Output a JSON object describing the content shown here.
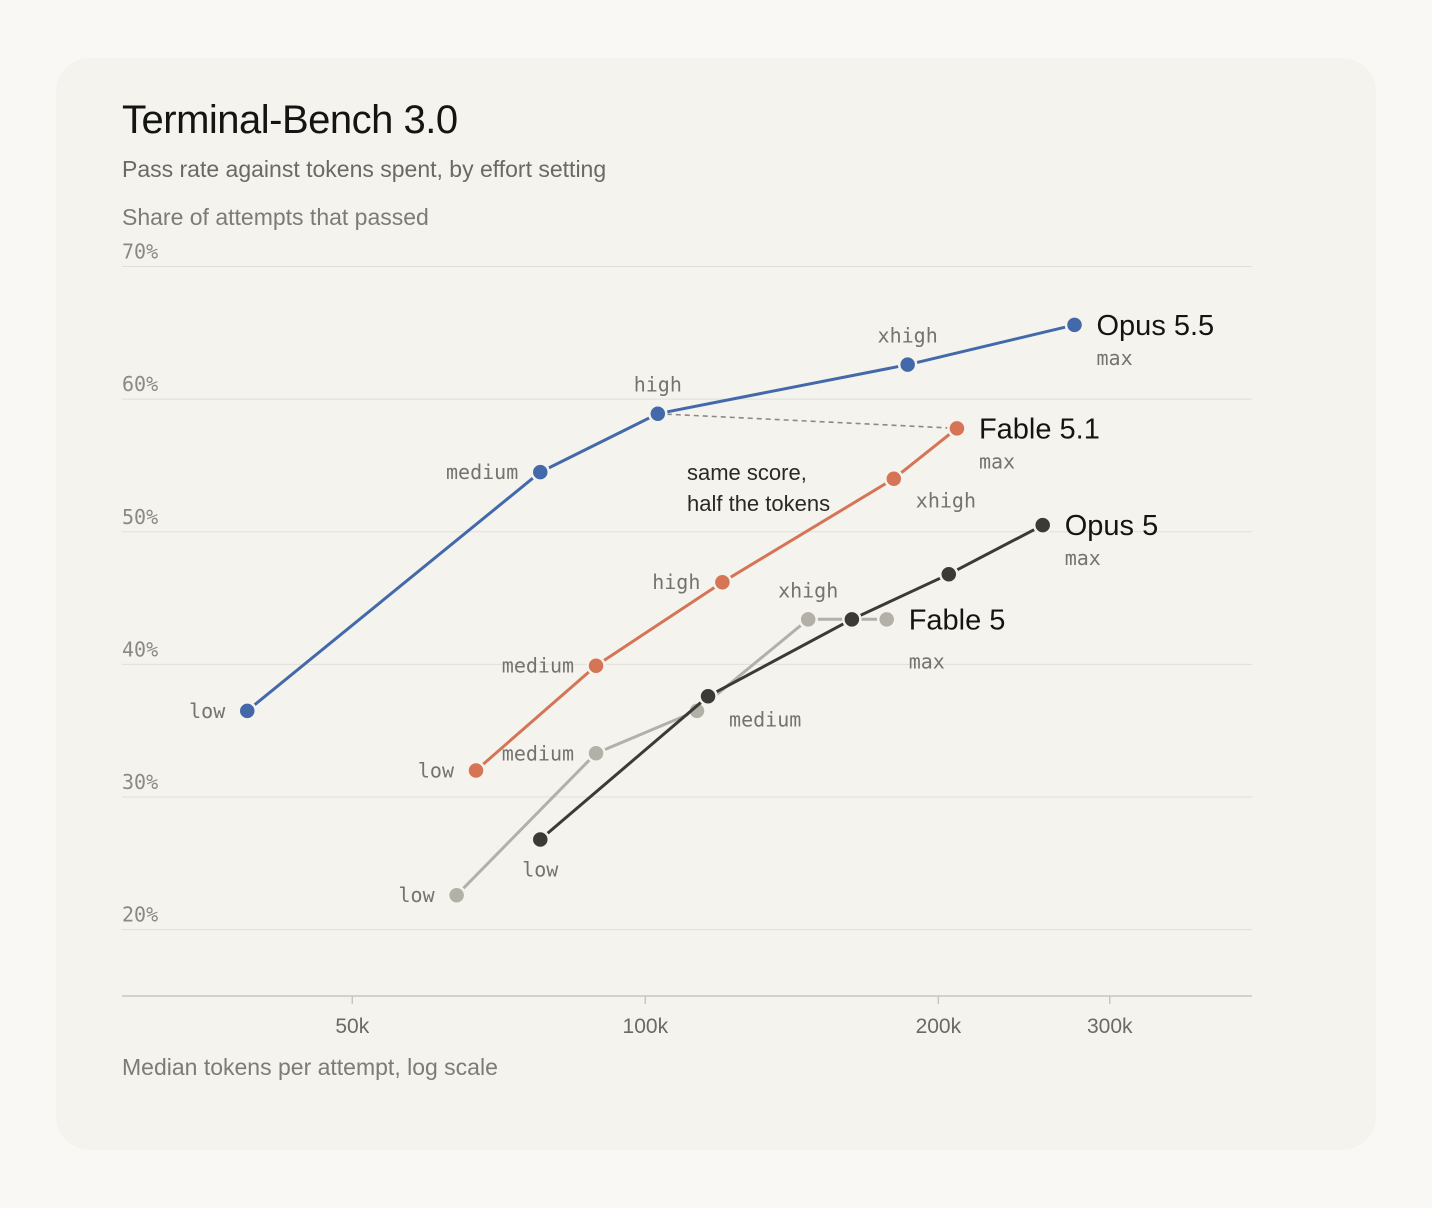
{
  "title": "Terminal-Bench 3.0",
  "subtitle": "Pass rate against tokens spent, by effort setting",
  "y_axis_label": "Share of attempts that passed",
  "x_axis_label": "Median tokens per attempt, log scale",
  "chart_data": {
    "type": "line",
    "title": "Terminal-Bench 3.0",
    "subtitle": "Pass rate against tokens spent, by effort setting",
    "xlabel": "Median tokens per attempt, log scale",
    "ylabel": "Share of attempts that passed",
    "x_scale": "log",
    "xlim": [
      29000,
      420000
    ],
    "ylim": [
      15,
      72
    ],
    "x_ticks": [
      {
        "value": 50000,
        "label": "50k"
      },
      {
        "value": 100000,
        "label": "100k"
      },
      {
        "value": 200000,
        "label": "200k"
      },
      {
        "value": 300000,
        "label": "300k"
      }
    ],
    "y_ticks": [
      {
        "value": 70,
        "label": "70%"
      },
      {
        "value": 60,
        "label": "60%"
      },
      {
        "value": 50,
        "label": "50%"
      },
      {
        "value": 40,
        "label": "40%"
      },
      {
        "value": 30,
        "label": "30%"
      },
      {
        "value": 20,
        "label": "20%"
      }
    ],
    "grid": true,
    "series": [
      {
        "name": "Fable 5",
        "color": "#b3b0a7",
        "points": [
          {
            "x": 64000,
            "y": 22.6,
            "label": "low"
          },
          {
            "x": 89000,
            "y": 33.3,
            "label": "medium"
          },
          {
            "x": 113000,
            "y": 36.5,
            "label": ""
          },
          {
            "x": 147000,
            "y": 43.4,
            "label": "xhigh"
          },
          {
            "x": 177000,
            "y": 43.4,
            "label": "max"
          }
        ]
      },
      {
        "name": "Opus 5",
        "color": "#3b3a36",
        "points": [
          {
            "x": 78000,
            "y": 26.8,
            "label": "low"
          },
          {
            "x": 116000,
            "y": 37.6,
            "label": "medium"
          },
          {
            "x": 163000,
            "y": 43.4,
            "label": ""
          },
          {
            "x": 205000,
            "y": 46.8,
            "label": ""
          },
          {
            "x": 256000,
            "y": 50.5,
            "label": "max"
          }
        ]
      },
      {
        "name": "Fable 5.1",
        "color": "#d57556",
        "points": [
          {
            "x": 67000,
            "y": 32.0,
            "label": "low"
          },
          {
            "x": 89000,
            "y": 39.9,
            "label": "medium"
          },
          {
            "x": 120000,
            "y": 46.2,
            "label": "high"
          },
          {
            "x": 180000,
            "y": 54.0,
            "label": "xhigh"
          },
          {
            "x": 209000,
            "y": 57.8,
            "label": "max"
          }
        ]
      },
      {
        "name": "Opus 5.5",
        "color": "#4369ab",
        "points": [
          {
            "x": 39000,
            "y": 36.5,
            "label": "low"
          },
          {
            "x": 78000,
            "y": 54.5,
            "label": "medium"
          },
          {
            "x": 103000,
            "y": 58.9,
            "label": "high"
          },
          {
            "x": 186000,
            "y": 62.6,
            "label": "xhigh"
          },
          {
            "x": 276000,
            "y": 65.6,
            "label": "max"
          }
        ]
      }
    ],
    "annotation": {
      "lines": [
        "same score,",
        "half the tokens"
      ],
      "from": {
        "x": 103000,
        "y": 58.9
      },
      "to": {
        "x": 209000,
        "y": 57.8
      }
    }
  }
}
